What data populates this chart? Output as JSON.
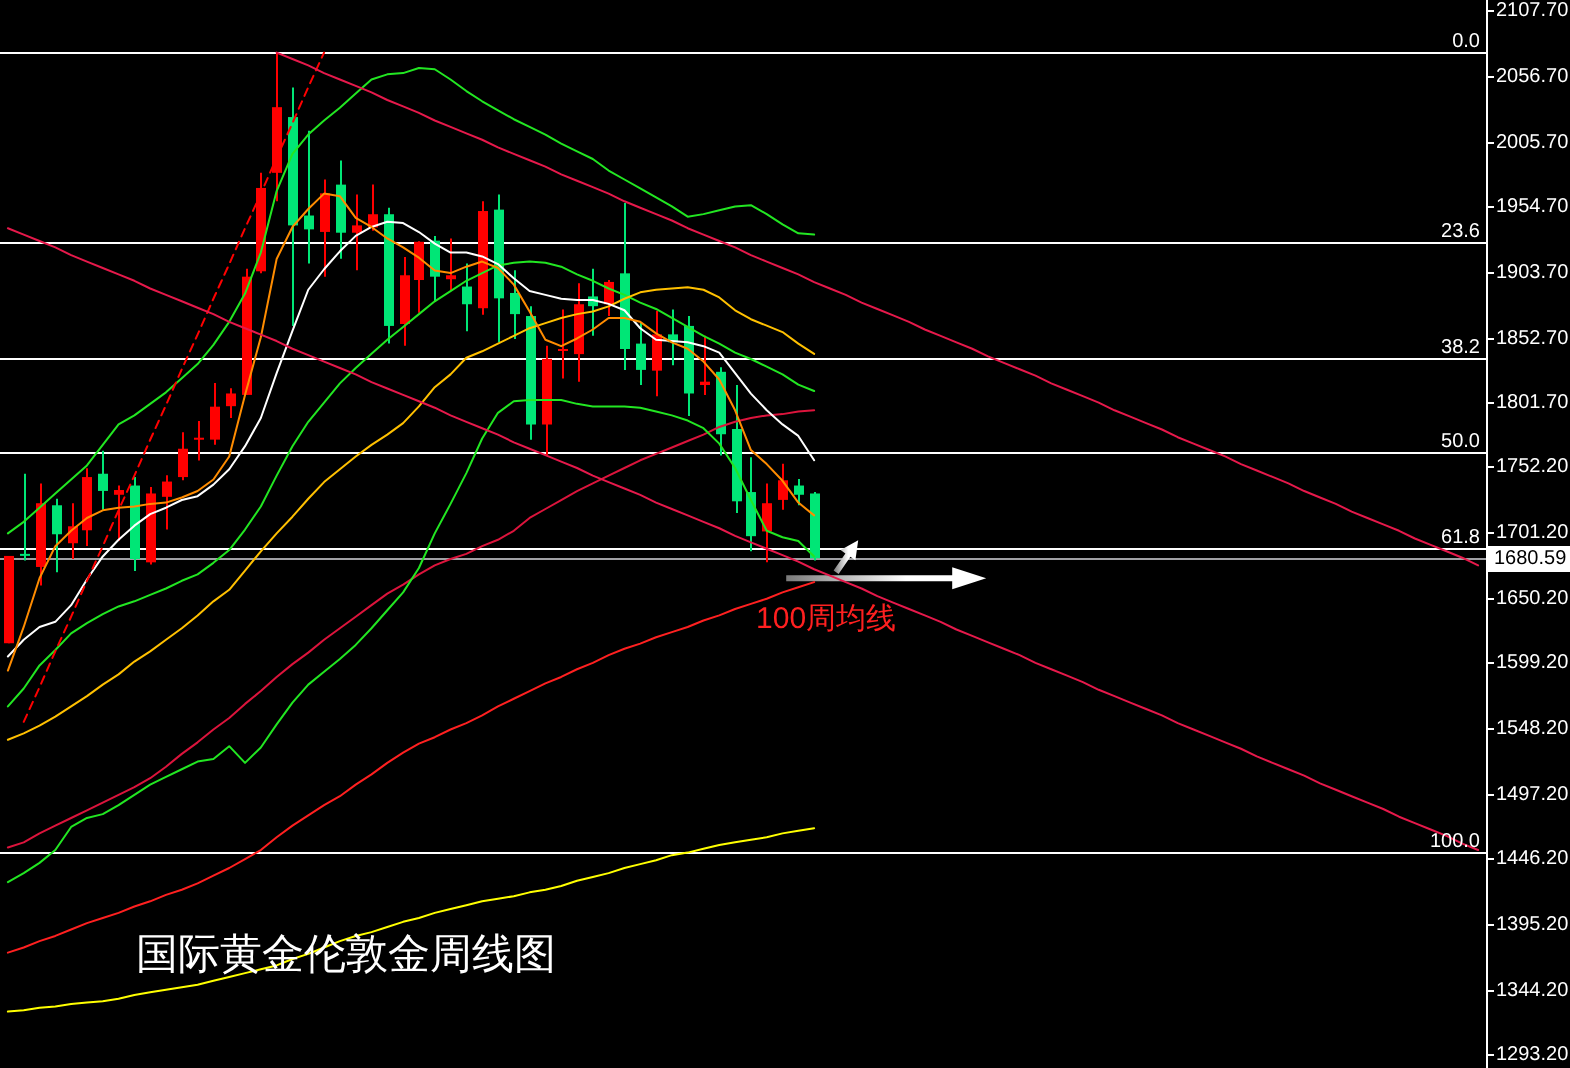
{
  "chart_data": {
    "type": "candlestick",
    "title": "国际黄金伦敦金周线图",
    "categories": [
      null,
      null,
      null,
      null,
      null,
      null,
      null,
      null,
      null,
      null,
      null,
      null,
      null,
      null,
      null,
      null,
      null,
      null,
      null,
      null,
      null,
      null,
      null,
      null,
      null,
      null,
      null,
      null,
      null,
      null,
      null,
      null,
      null,
      null,
      null,
      null,
      null,
      null,
      null,
      null,
      null,
      null,
      null,
      null,
      null,
      null,
      null,
      null,
      null,
      null,
      null,
      null,
      null,
      null,
      null,
      null,
      null,
      null,
      null,
      null,
      null,
      null,
      null,
      null,
      null,
      null,
      null,
      null,
      null,
      null,
      null,
      null,
      null,
      null,
      null,
      null,
      null,
      null,
      null,
      null,
      null,
      null,
      null,
      null,
      null,
      null,
      null,
      null,
      null,
      null,
      null,
      null,
      null,
      null
    ],
    "ohlc": [
      [
        1614.3,
        1682.4,
        1614.3,
        1682.4
      ],
      [
        1684.0,
        1746.5,
        1678.9,
        1683.0
      ],
      [
        1673.8,
        1738.8,
        1659.4,
        1723.5
      ],
      [
        1721.9,
        1727.0,
        1669.7,
        1699.3
      ],
      [
        1692.3,
        1723.5,
        1680.0,
        1705.5
      ],
      [
        1702.4,
        1750.7,
        1690.1,
        1743.9
      ],
      [
        1746.5,
        1764.5,
        1718.4,
        1733.1
      ],
      [
        1730.1,
        1737.3,
        1694.3,
        1733.8
      ],
      [
        1737.3,
        1743.9,
        1670.7,
        1680.0
      ],
      [
        1677.4,
        1736.2,
        1675.8,
        1731.1
      ],
      [
        1728.5,
        1745.4,
        1703.0,
        1740.4
      ],
      [
        1743.9,
        1778.8,
        1741.4,
        1766.0
      ],
      [
        1773.1,
        1787.6,
        1756.8,
        1774.6
      ],
      [
        1773.1,
        1817.2,
        1769.1,
        1798.8
      ],
      [
        1799.2,
        1813.1,
        1790.0,
        1809.1
      ],
      [
        1808.0,
        1906.4,
        1808.0,
        1900.2
      ],
      [
        1904.4,
        1981.2,
        1902.8,
        1969.4
      ],
      [
        1981.2,
        2075.0,
        1959.1,
        2032.4
      ],
      [
        2024.7,
        2047.8,
        1861.8,
        1940.2
      ],
      [
        1947.9,
        2014.0,
        1910.5,
        1937.1
      ],
      [
        1935.1,
        1976.0,
        1900.2,
        1965.2
      ],
      [
        1972.0,
        1990.9,
        1914.1,
        1934.5
      ],
      [
        1934.5,
        1964.3,
        1905.3,
        1940.2
      ],
      [
        1938.6,
        1972.0,
        1936.0,
        1948.9
      ],
      [
        1948.9,
        1954.0,
        1848.0,
        1861.8
      ],
      [
        1863.3,
        1915.6,
        1846.4,
        1901.3
      ],
      [
        1897.6,
        1927.9,
        1872.1,
        1927.4
      ],
      [
        1928.3,
        1932.0,
        1880.7,
        1900.2
      ],
      [
        1898.2,
        1929.9,
        1889.9,
        1901.3
      ],
      [
        1892.5,
        1910.5,
        1857.6,
        1878.7
      ],
      [
        1875.6,
        1959.1,
        1870.6,
        1951.4
      ],
      [
        1952.5,
        1964.3,
        1849.0,
        1883.3
      ],
      [
        1887.5,
        1905.3,
        1851.5,
        1871.0
      ],
      [
        1869.5,
        1877.2,
        1773.1,
        1784.9
      ],
      [
        1784.9,
        1846.4,
        1760.8,
        1836.1
      ],
      [
        1842.3,
        1874.6,
        1820.8,
        1843.8
      ],
      [
        1839.8,
        1895.1,
        1818.3,
        1878.7
      ],
      [
        1884.8,
        1906.4,
        1854.1,
        1877.2
      ],
      [
        1878.7,
        1897.6,
        1869.5,
        1896.1
      ],
      [
        1902.8,
        1957.6,
        1827.5,
        1843.8
      ],
      [
        1848.0,
        1864.4,
        1815.7,
        1827.5
      ],
      [
        1826.9,
        1873.6,
        1806.9,
        1855.2
      ],
      [
        1855.2,
        1874.6,
        1831.1,
        1849.0
      ],
      [
        1861.8,
        1869.5,
        1791.6,
        1809.1
      ],
      [
        1815.7,
        1854.1,
        1808.0,
        1818.3
      ],
      [
        1826.0,
        1829.5,
        1760.8,
        1777.3
      ],
      [
        1781.4,
        1815.7,
        1715.8,
        1725.0
      ],
      [
        1732.2,
        1759.3,
        1686.1,
        1697.8
      ],
      [
        1701.5,
        1738.8,
        1677.4,
        1723.5
      ],
      [
        1726.1,
        1754.2,
        1718.4,
        1741.4
      ],
      [
        1737.3,
        1742.4,
        1721.9,
        1730.1
      ],
      [
        1731.1,
        1732.2,
        1678.9,
        1680.59
      ],
      null,
      null,
      null,
      null,
      null,
      null,
      null,
      null,
      null,
      null,
      null,
      null,
      null,
      null,
      null,
      null,
      null,
      null,
      null,
      null,
      null,
      null,
      null,
      null,
      null,
      null,
      null,
      null,
      null,
      null,
      null,
      null,
      null,
      null,
      null,
      null,
      null,
      null,
      null,
      null,
      null,
      null
    ],
    "colors": [
      "#ff0000",
      "#00e676",
      "#ff0000",
      "#00e676",
      "#ff0000",
      "#ff0000",
      "#00e676",
      "#ff0000",
      "#00e676",
      "#ff0000",
      "#ff0000",
      "#ff0000",
      "#ff0000",
      "#ff0000",
      "#ff0000",
      "#ff0000",
      "#ff0000",
      "#ff0000",
      "#00e676",
      "#00e676",
      "#ff0000",
      "#00e676",
      "#ff0000",
      "#ff0000",
      "#00e676",
      "#ff0000",
      "#ff0000",
      "#00e676",
      "#ff0000",
      "#00e676",
      "#ff0000",
      "#00e676",
      "#00e676",
      "#00e676",
      "#ff0000",
      "#ff0000",
      "#ff0000",
      "#00e676",
      "#ff0000",
      "#00e676",
      "#00e676",
      "#ff0000",
      "#00e676",
      "#00e676",
      "#ff0000",
      "#00e676",
      "#00e676",
      "#00e676",
      "#ff0000",
      "#ff0000",
      "#00e676",
      "#00e676",
      null,
      null,
      null,
      null,
      null,
      null,
      null,
      null,
      null,
      null,
      null,
      null,
      null,
      null,
      null,
      null,
      null,
      null,
      null,
      null,
      null,
      null,
      null,
      null,
      null,
      null,
      null,
      null,
      null,
      null,
      null,
      null,
      null,
      null,
      null,
      null,
      null,
      null,
      null,
      null,
      null,
      null
    ],
    "ylim": [
      1283,
      2116
    ],
    "yticks": [
      {
        "value": 2107.7,
        "label": "2107.70"
      },
      {
        "value": 2056.7,
        "label": "2056.70"
      },
      {
        "value": 2005.7,
        "label": "2005.70"
      },
      {
        "value": 1954.7,
        "label": "1954.70"
      },
      {
        "value": 1903.7,
        "label": "1903.70"
      },
      {
        "value": 1852.7,
        "label": "1852.70"
      },
      {
        "value": 1801.7,
        "label": "1801.70"
      },
      {
        "value": 1752.2,
        "label": "1752.20"
      },
      {
        "value": 1701.2,
        "label": "1701.20"
      },
      {
        "value": 1650.2,
        "label": "1650.20"
      },
      {
        "value": 1599.2,
        "label": "1599.20"
      },
      {
        "value": 1548.2,
        "label": "1548.20"
      },
      {
        "value": 1497.2,
        "label": "1497.20"
      },
      {
        "value": 1446.2,
        "label": "1446.20"
      },
      {
        "value": 1395.2,
        "label": "1395.20"
      },
      {
        "value": 1344.2,
        "label": "1344.20"
      },
      {
        "value": 1293.2,
        "label": "1293.20"
      }
    ],
    "tick_labels": "y",
    "series": [
      {
        "type": "line",
        "color": "#ffff00",
        "values": [
          1327,
          1328,
          1330,
          1331,
          1333,
          1334,
          1335,
          1337,
          1340,
          1342,
          1344,
          1346,
          1348,
          1351,
          1354,
          1357,
          1360,
          1363,
          1368,
          1372,
          1377,
          1382,
          1386,
          1389,
          1393,
          1397,
          1400,
          1404,
          1407,
          1410,
          1413,
          1415,
          1417,
          1420,
          1422,
          1425,
          1429,
          1432,
          1435,
          1439,
          1442,
          1445,
          1449,
          1451,
          1454,
          1457,
          1459,
          1461,
          1463,
          1466,
          1468,
          1470,
          null,
          null,
          null,
          null,
          null,
          null,
          null,
          null,
          null,
          null,
          null,
          null,
          null,
          null,
          null,
          null,
          null,
          null,
          null,
          null,
          null,
          null,
          null,
          null,
          null,
          null,
          null,
          null,
          null,
          null,
          null,
          null,
          null,
          null,
          null,
          null,
          null,
          null,
          null,
          null,
          null,
          null
        ]
      },
      {
        "type": "line",
        "name": "100周均线",
        "color": "#ff2020",
        "values": [
          1373,
          1377,
          1382,
          1386,
          1391,
          1396,
          1400,
          1404,
          1409,
          1413,
          1418,
          1422,
          1427,
          1433,
          1439,
          1446,
          1453,
          1463,
          1472,
          1480,
          1488,
          1495,
          1504,
          1512,
          1521,
          1529,
          1536,
          1541,
          1547,
          1552,
          1558,
          1565,
          1571,
          1577,
          1583,
          1588,
          1594,
          1599,
          1605,
          1610,
          1614,
          1619,
          1623,
          1627,
          1632,
          1636,
          1641,
          1645,
          1649,
          1654,
          1658,
          1662,
          null,
          null,
          null,
          null,
          null,
          null,
          null,
          null,
          null,
          null,
          null,
          null,
          null,
          null,
          null,
          null,
          null,
          null,
          null,
          null,
          null,
          null,
          null,
          null,
          null,
          null,
          null,
          null,
          null,
          null,
          null,
          null,
          null,
          null,
          null,
          null,
          null,
          null,
          null,
          null,
          null,
          null
        ]
      },
      {
        "type": "line",
        "color": "#dc143c",
        "values": [
          1455,
          1459,
          1466,
          1472,
          1478,
          1484,
          1490,
          1496,
          1502,
          1509,
          1518,
          1528,
          1537,
          1547,
          1556,
          1567,
          1577,
          1588,
          1598,
          1607,
          1617,
          1626,
          1635,
          1644,
          1653,
          1660,
          1668,
          1675,
          1680,
          1684,
          1690,
          1695,
          1702,
          1712,
          1719,
          1726,
          1733,
          1739,
          1745,
          1751,
          1757,
          1762,
          1767,
          1772,
          1777,
          1783,
          1787,
          1790,
          1792,
          1793,
          1795,
          1796,
          null,
          null,
          null,
          null,
          null,
          null,
          null,
          null,
          null,
          null,
          null,
          null,
          null,
          null,
          null,
          null,
          null,
          null,
          null,
          null,
          null,
          null,
          null,
          null,
          null,
          null,
          null,
          null,
          null,
          null,
          null,
          null,
          null,
          null,
          null,
          null,
          null,
          null,
          null,
          null,
          null,
          null
        ]
      },
      {
        "type": "line",
        "color": "#22e622",
        "values": [
          1428,
          1435,
          1443,
          1453,
          1471,
          1478,
          1481,
          1488,
          1496,
          1504,
          1510,
          1516,
          1522,
          1524,
          1534,
          1521,
          1533,
          1551,
          1568,
          1582,
          1592,
          1602,
          1613,
          1626,
          1640,
          1654,
          1673,
          1700,
          1723,
          1747,
          1774,
          1794,
          1803,
          1804,
          1804,
          1804,
          1801,
          1799,
          1799,
          1799,
          1798,
          1795,
          1792,
          1788,
          1782,
          1770,
          1751,
          1726,
          1702,
          1697,
          1694,
          1682,
          null,
          null,
          null,
          null,
          null,
          null,
          null,
          null,
          null,
          null,
          null,
          null,
          null,
          null,
          null,
          null,
          null,
          null,
          null,
          null,
          null,
          null,
          null,
          null,
          null,
          null,
          null,
          null,
          null,
          null,
          null,
          null,
          null,
          null,
          null,
          null,
          null,
          null,
          null,
          null,
          null,
          null
        ]
      },
      {
        "type": "line",
        "color": "#22e622",
        "values": [
          1565,
          1579,
          1597,
          1609,
          1622,
          1630,
          1637,
          1643,
          1647,
          1652,
          1657,
          1663,
          1668,
          1677,
          1687,
          1703,
          1721,
          1745,
          1768,
          1787,
          1802,
          1817,
          1829,
          1840,
          1851,
          1861,
          1871,
          1881,
          1889,
          1897,
          1903,
          1909,
          1911,
          1912,
          1911,
          1908,
          1902,
          1897,
          1891,
          1886,
          1880,
          1875,
          1868,
          1861,
          1854,
          1848,
          1841,
          1836,
          1830,
          1824,
          1816,
          1811,
          null,
          null,
          null,
          null,
          null,
          null,
          null,
          null,
          null,
          null,
          null,
          null,
          null,
          null,
          null,
          null,
          null,
          null,
          null,
          null,
          null,
          null,
          null,
          null,
          null,
          null,
          null,
          null,
          null,
          null,
          null,
          null,
          null,
          null,
          null,
          null,
          null,
          null,
          null,
          null,
          null,
          null
        ]
      },
      {
        "type": "line",
        "color": "#22e622",
        "values": [
          1700,
          1709,
          1720,
          1731,
          1742,
          1753,
          1769,
          1785,
          1792,
          1801,
          1810,
          1821,
          1832,
          1847,
          1865,
          1887,
          1919,
          1967,
          1996,
          2011,
          2022,
          2032,
          2043,
          2054,
          2058,
          2059,
          2063,
          2062,
          2054,
          2045,
          2037,
          2030,
          2023,
          2017,
          2011,
          2004,
          1998,
          1992,
          1983,
          1976,
          1969,
          1962,
          1955,
          1947,
          1949,
          1952,
          1955,
          1956,
          1949,
          1941,
          1934,
          1933,
          null,
          null,
          null,
          null,
          null,
          null,
          null,
          null,
          null,
          null,
          null,
          null,
          null,
          null,
          null,
          null,
          null,
          null,
          null,
          null,
          null,
          null,
          null,
          null,
          null,
          null,
          null,
          null,
          null,
          null,
          null,
          null,
          null,
          null,
          null,
          null,
          null,
          null,
          null,
          null,
          null,
          null
        ]
      },
      {
        "type": "line",
        "color": "#ffc000",
        "values": [
          1539,
          1544,
          1550,
          1557,
          1565,
          1573,
          1582,
          1590,
          1600,
          1608,
          1617,
          1626,
          1636,
          1647,
          1656,
          1671,
          1686,
          1700,
          1713,
          1727,
          1740,
          1750,
          1760,
          1769,
          1777,
          1786,
          1799,
          1814,
          1824,
          1837,
          1842,
          1848,
          1854,
          1860,
          1864,
          1868,
          1871,
          1873,
          1877,
          1883,
          1888,
          1890,
          1891,
          1892,
          1890,
          1884,
          1874,
          1867,
          1862,
          1857,
          1848,
          1840,
          null,
          null,
          null,
          null,
          null,
          null,
          null,
          null,
          null,
          null,
          null,
          null,
          null,
          null,
          null,
          null,
          null,
          null,
          null,
          null,
          null,
          null,
          null,
          null,
          null,
          null,
          null,
          null,
          null,
          null,
          null,
          null,
          null,
          null,
          null,
          null,
          null,
          null,
          null,
          null,
          null,
          null
        ]
      },
      {
        "type": "line",
        "color": "#ffffff",
        "values": [
          1604,
          1617,
          1627,
          1631,
          1644,
          1664,
          1682,
          1695,
          1706,
          1715,
          1720,
          1726,
          1729,
          1738,
          1750,
          1768,
          1790,
          1825,
          1858,
          1890,
          1906,
          1920,
          1932,
          1939,
          1943,
          1942,
          1935,
          1926,
          1919,
          1919,
          1916,
          1910,
          1899,
          1889,
          1886,
          1883,
          1882,
          1882,
          1879,
          1874,
          1860,
          1851,
          1850,
          1849,
          1846,
          1841,
          1825,
          1809,
          1796,
          1785,
          1776,
          1757,
          null,
          null,
          null,
          null,
          null,
          null,
          null,
          null,
          null,
          null,
          null,
          null,
          null,
          null,
          null,
          null,
          null,
          null,
          null,
          null,
          null,
          null,
          null,
          null,
          null,
          null,
          null,
          null,
          null,
          null,
          null,
          null,
          null,
          null,
          null,
          null,
          null,
          null,
          null,
          null,
          null,
          null
        ]
      },
      {
        "type": "line",
        "color": "#ff8c00",
        "values": [
          1593,
          1627,
          1665,
          1690,
          1702,
          1712,
          1718,
          1720,
          1721,
          1723,
          1724,
          1728,
          1733,
          1742,
          1760,
          1808,
          1853,
          1914,
          1939,
          1953,
          1965,
          1963,
          1946,
          1939,
          1930,
          1923,
          1915,
          1905,
          1903,
          1908,
          1912,
          1907,
          1894,
          1873,
          1851,
          1846,
          1852,
          1859,
          1868,
          1868,
          1865,
          1856,
          1849,
          1844,
          1834,
          1820,
          1796,
          1765,
          1754,
          1741,
          1724,
          1714,
          null,
          null,
          null,
          null,
          null,
          null,
          null,
          null,
          null,
          null,
          null,
          null,
          null,
          null,
          null,
          null,
          null,
          null,
          null,
          null,
          null,
          null,
          null,
          null,
          null,
          null,
          null,
          null,
          null,
          null,
          null,
          null,
          null,
          null,
          null,
          null,
          null,
          null,
          null,
          null,
          null,
          null
        ]
      },
      {
        "type": "line",
        "color": "#ff0000",
        "line_style": "dashed",
        "values": [
          null,
          1553,
          1580,
          1608,
          1635,
          1663,
          1690,
          1718,
          1745,
          1773,
          1800,
          1828,
          1855,
          1883,
          1910,
          1938,
          1965,
          1993,
          2020,
          2048,
          2075,
          null,
          null,
          null,
          null,
          null,
          null,
          null,
          null,
          null,
          null,
          null,
          null,
          null,
          null,
          null,
          null,
          null,
          null,
          null,
          null,
          null,
          null,
          null,
          null,
          null,
          null,
          null,
          null,
          null,
          null,
          null,
          null,
          null,
          null,
          null,
          null,
          null,
          null,
          null,
          null,
          null,
          null,
          null,
          null,
          null,
          null,
          null,
          null,
          null,
          null,
          null,
          null,
          null,
          null,
          null,
          null,
          null,
          null,
          null,
          null,
          null,
          null,
          null,
          null,
          null,
          null,
          null,
          null,
          null,
          null,
          null,
          null,
          null
        ]
      },
      {
        "type": "line",
        "color": "#e6194b",
        "values": [
          null,
          null,
          null,
          null,
          null,
          null,
          null,
          null,
          null,
          null,
          null,
          null,
          null,
          null,
          null,
          null,
          null,
          2075,
          2070,
          2065,
          2059,
          2054,
          2049,
          2044,
          2038,
          2033,
          2028,
          2022,
          2017,
          2012,
          2007,
          2001,
          1996,
          1991,
          1986,
          1980,
          1975,
          1970,
          1965,
          1959,
          1954,
          1949,
          1944,
          1938,
          1933,
          1928,
          1923,
          1917,
          1912,
          1907,
          1902,
          1896,
          1891,
          1886,
          1880,
          1875,
          1870,
          1865,
          1859,
          1854,
          1849,
          1844,
          1838,
          1833,
          1828,
          1823,
          1817,
          1812,
          1807,
          1802,
          1796,
          1791,
          1786,
          1781,
          1775,
          1770,
          1765,
          1760,
          1754,
          1749,
          1744,
          1739,
          1733,
          1728,
          1723,
          1717,
          1712,
          1707,
          1702,
          1696,
          1691,
          1686,
          1681,
          1675
        ]
      },
      {
        "type": "line",
        "color": "#e6194b",
        "values": [
          1938,
          1933,
          1928,
          1923,
          1917,
          1912,
          1907,
          1902,
          1897,
          1891,
          1886,
          1881,
          1876,
          1871,
          1865,
          1860,
          1855,
          1850,
          1844,
          1839,
          1834,
          1829,
          1824,
          1818,
          1813,
          1808,
          1803,
          1798,
          1792,
          1787,
          1782,
          1777,
          1771,
          1766,
          1761,
          1756,
          1751,
          1745,
          1740,
          1735,
          1730,
          1724,
          1719,
          1714,
          1709,
          1704,
          1698,
          1693,
          1688,
          1683,
          1678,
          1672,
          1667,
          1662,
          1657,
          1651,
          1646,
          1641,
          1636,
          1631,
          1625,
          1620,
          1615,
          1610,
          1605,
          1599,
          1594,
          1589,
          1584,
          1578,
          1573,
          1568,
          1563,
          1558,
          1552,
          1547,
          1542,
          1537,
          1532,
          1526,
          1521,
          1516,
          1511,
          1505,
          1500,
          1495,
          1490,
          1485,
          1479,
          1474,
          1469,
          1464,
          1458,
          1453
        ]
      }
    ],
    "ref_lines": [
      {
        "axis": "y",
        "value": 2075,
        "color": "#ffffff"
      },
      {
        "axis": "y",
        "value": 1928,
        "color": "#ffffff"
      },
      {
        "axis": "y",
        "value": 1837,
        "color": "#ffffff"
      },
      {
        "axis": "y",
        "value": 1763,
        "color": "#ffffff"
      },
      {
        "axis": "y",
        "value": 1689,
        "color": "#ffffff"
      },
      {
        "axis": "y",
        "value": 1451,
        "color": "#ffffff"
      },
      {
        "axis": "y",
        "value": 1680.59,
        "label": "1680.59",
        "color": "#a0a0a4"
      }
    ],
    "annotations": [
      {
        "text": "0.0",
        "y": 2075
      },
      {
        "text": "23.6",
        "y": 1928
      },
      {
        "text": "38.2",
        "y": 1837
      },
      {
        "text": "50.0",
        "y": 1763
      },
      {
        "text": "61.8",
        "y": 1689
      },
      {
        "text": "100.0",
        "y": 1451
      }
    ]
  }
}
